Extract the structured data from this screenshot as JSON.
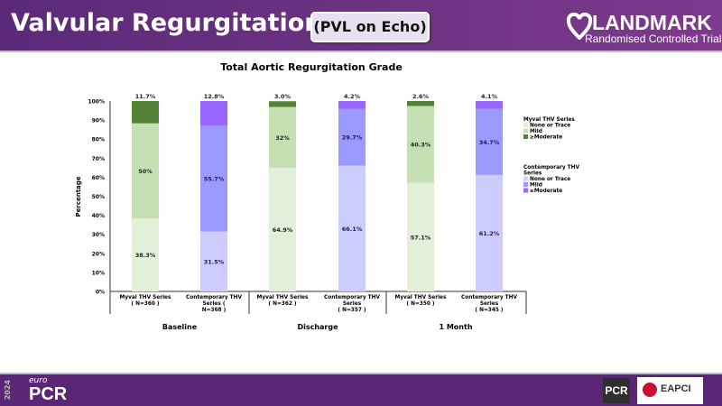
{
  "header": {
    "title": "Valvular Regurgitation",
    "subtitle": "(PVL on Echo)",
    "logo_main": "LANDMARK",
    "logo_sub": "Randomised Controlled Trial"
  },
  "footer": {
    "year": "2024",
    "euro": "euro",
    "pcr": "PCR",
    "pcr_badge": "PCR",
    "eapci": "EAPCI"
  },
  "chart_data": {
    "type": "bar",
    "stacked": true,
    "title": "Total Aortic Regurgitation Grade",
    "ylabel": "Percentage",
    "ylim": [
      0,
      100
    ],
    "yticks": [
      "0%",
      "10%",
      "20%",
      "30%",
      "40%",
      "50%",
      "60%",
      "70%",
      "80%",
      "90%",
      "100%"
    ],
    "groups": [
      "Baseline",
      "Discharge",
      "1 Month"
    ],
    "categories": [
      {
        "label1": "Myval THV Series",
        "label2": "( N=360 )",
        "series": "myval"
      },
      {
        "label1": "Contemporary THV",
        "label2": "Series        (",
        "label3": "N=368 )",
        "series": "contemporary"
      },
      {
        "label1": "Myval THV Series",
        "label2": "( N=362 )",
        "series": "myval"
      },
      {
        "label1": "Contemporary THV",
        "label2": "Series",
        "label3": "( N=357 )",
        "series": "contemporary"
      },
      {
        "label1": "Myval THV Series",
        "label2": "( N=350 )",
        "series": "myval"
      },
      {
        "label1": "Contemporary THV",
        "label2": "Series",
        "label3": "( N=345 )",
        "series": "contemporary"
      }
    ],
    "stacks": [
      {
        "values": [
          38.3,
          50,
          11.7
        ],
        "labels": [
          "38.3%",
          "50%",
          "11.7%"
        ]
      },
      {
        "values": [
          31.5,
          55.7,
          12.8
        ],
        "labels": [
          "31.5%",
          "55.7%",
          "12.8%"
        ]
      },
      {
        "values": [
          64.9,
          32,
          3.0
        ],
        "labels": [
          "64.9%",
          "32%",
          "3.0%"
        ]
      },
      {
        "values": [
          66.1,
          29.7,
          4.2
        ],
        "labels": [
          "66.1%",
          "29.7%",
          "4.2%"
        ]
      },
      {
        "values": [
          57.1,
          40.3,
          2.6
        ],
        "labels": [
          "57.1%",
          "40.3%",
          "2.6%"
        ]
      },
      {
        "values": [
          61.2,
          34.7,
          4.1
        ],
        "labels": [
          "61.2%",
          "34.7%",
          "4.1%"
        ]
      }
    ],
    "legend": [
      {
        "title": "Myval THV Series",
        "key": "myval",
        "entries": [
          "None or Trace",
          "Mild",
          "≥Moderate"
        ],
        "colors": [
          "#e2efd9",
          "#c5e0b3",
          "#538135"
        ]
      },
      {
        "title": "Contemporary THV Series",
        "title1": "Contemporary THV",
        "title2": "Series",
        "key": "contemporary",
        "entries": [
          "None or Trace",
          "Mild",
          "≥Moderate"
        ],
        "colors": [
          "#ccccff",
          "#9b9bff",
          "#9966ff"
        ]
      }
    ],
    "legend_placement": "right"
  }
}
